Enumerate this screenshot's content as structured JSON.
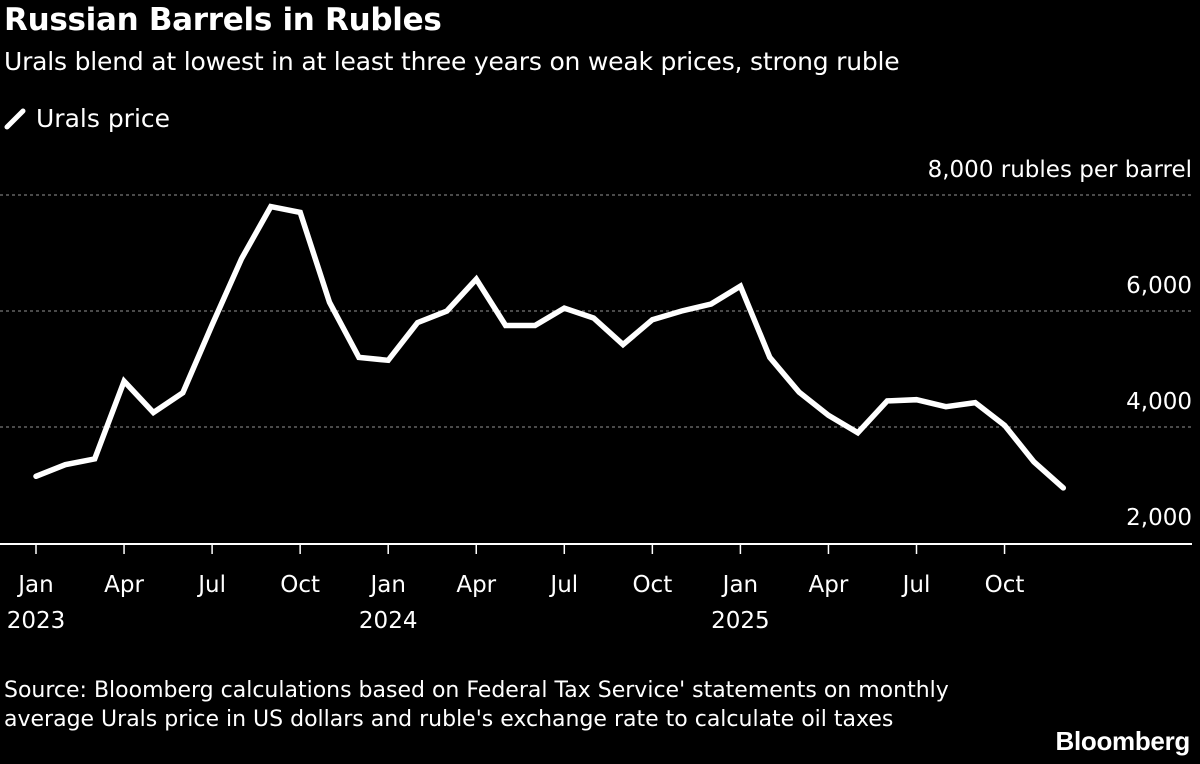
{
  "header": {
    "title": "Russian Barrels in Rubles",
    "subtitle": "Urals blend at lowest in at least three years on weak prices, strong ruble"
  },
  "legend": {
    "label": "Urals price",
    "color": "#ffffff"
  },
  "footer": {
    "source": "Source: Bloomberg calculations based on Federal Tax Service' statements on monthly average Urals price in US dollars and ruble's exchange rate to calculate oil taxes",
    "brand": "Bloomberg"
  },
  "colors": {
    "background": "#000000",
    "line": "#ffffff",
    "grid": "#777777"
  },
  "chart_data": {
    "type": "line",
    "title": "Russian Barrels in Rubles",
    "subtitle": "Urals blend at lowest in at least three years on weak prices, strong ruble",
    "unit_label": "8,000 rubles per barrel",
    "ylim": [
      1500,
      8000
    ],
    "y_ticks": [
      {
        "value": 8000,
        "label": "8,000 rubles per barrel"
      },
      {
        "value": 6000,
        "label": "6,000"
      },
      {
        "value": 4000,
        "label": "4,000"
      },
      {
        "value": 2000,
        "label": "2,000"
      }
    ],
    "grid": true,
    "legend_position": "top-left",
    "x_ticks": [
      {
        "month": 0,
        "label": "Jan",
        "year": "2023"
      },
      {
        "month": 3,
        "label": "Apr",
        "year": ""
      },
      {
        "month": 6,
        "label": "Jul",
        "year": ""
      },
      {
        "month": 9,
        "label": "Oct",
        "year": ""
      },
      {
        "month": 12,
        "label": "Jan",
        "year": "2024"
      },
      {
        "month": 15,
        "label": "Apr",
        "year": ""
      },
      {
        "month": 18,
        "label": "Jul",
        "year": ""
      },
      {
        "month": 21,
        "label": "Oct",
        "year": ""
      },
      {
        "month": 24,
        "label": "Jan",
        "year": "2025"
      },
      {
        "month": 27,
        "label": "Apr",
        "year": ""
      },
      {
        "month": 30,
        "label": "Jul",
        "year": ""
      },
      {
        "month": 33,
        "label": "Oct",
        "year": ""
      }
    ],
    "series": [
      {
        "name": "Urals price",
        "x": [
          "2023-01",
          "2023-02",
          "2023-03",
          "2023-04",
          "2023-05",
          "2023-06",
          "2023-07",
          "2023-08",
          "2023-09",
          "2023-10",
          "2023-11",
          "2023-12",
          "2024-01",
          "2024-02",
          "2024-03",
          "2024-04",
          "2024-05",
          "2024-06",
          "2024-07",
          "2024-08",
          "2024-09",
          "2024-10",
          "2024-11",
          "2024-12",
          "2025-01",
          "2025-02",
          "2025-03",
          "2025-04",
          "2025-05",
          "2025-06",
          "2025-07",
          "2025-08",
          "2025-09",
          "2025-10",
          "2025-11",
          "2025-12"
        ],
        "values": [
          3150,
          3350,
          3450,
          4790,
          4250,
          4590,
          5760,
          6900,
          7800,
          7700,
          6150,
          5200,
          5150,
          5800,
          6000,
          6550,
          5750,
          5750,
          6050,
          5880,
          5420,
          5850,
          6000,
          6120,
          6430,
          5200,
          4600,
          4200,
          3900,
          4450,
          4470,
          4350,
          4420,
          4030,
          3400,
          2950
        ]
      }
    ]
  }
}
